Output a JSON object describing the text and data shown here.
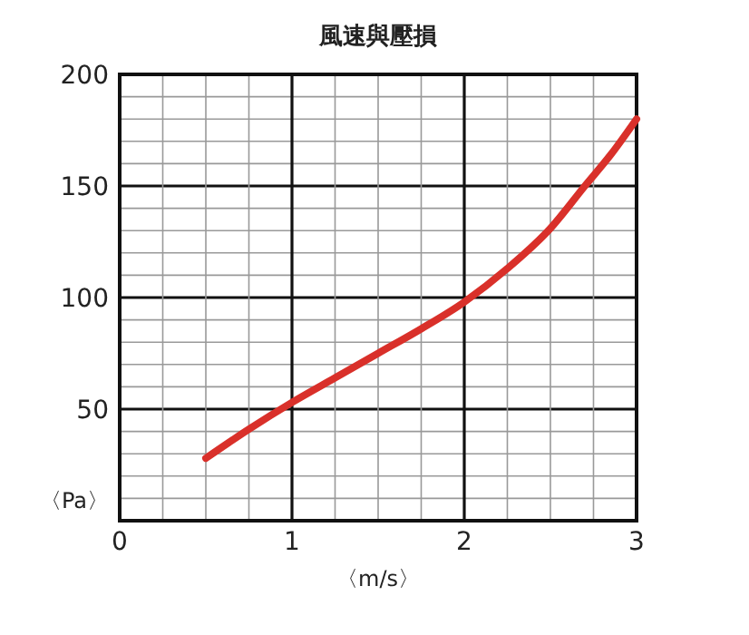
{
  "chart_data": {
    "type": "line",
    "title": "風速與壓損",
    "xlabel": "〈m/s〉",
    "ylabel": "〈Pa〉",
    "x": [
      0.5,
      0.75,
      1,
      1.25,
      1.5,
      1.75,
      2,
      2.25,
      2.5,
      2.7,
      2.85,
      3
    ],
    "series": [
      {
        "color": "#d9302a",
        "values": [
          28,
          41,
          53,
          64,
          75,
          86,
          98,
          113,
          131,
          150,
          164,
          180
        ]
      }
    ],
    "xlim": [
      0,
      3
    ],
    "ylim": [
      0,
      200
    ],
    "xticks": [
      0,
      {
        "value": 0.25,
        "label": null
      },
      {
        "value": 0.5,
        "label": null
      },
      {
        "value": 0.75,
        "label": null
      },
      1,
      {
        "value": 1.25,
        "label": null
      },
      {
        "value": 1.5,
        "label": null
      },
      {
        "value": 1.75,
        "label": null
      },
      2,
      {
        "value": 2.25,
        "label": null
      },
      {
        "value": 2.5,
        "label": null
      },
      {
        "value": 2.75,
        "label": null
      },
      3
    ],
    "yticks": [
      {
        "value": 0,
        "label": null
      },
      {
        "value": 10,
        "label": null
      },
      {
        "value": 20,
        "label": null
      },
      {
        "value": 30,
        "label": null
      },
      {
        "value": 40,
        "label": null
      },
      50,
      {
        "value": 60,
        "label": null
      },
      {
        "value": 70,
        "label": null
      },
      {
        "value": 80,
        "label": null
      },
      {
        "value": 90,
        "label": null
      },
      100,
      {
        "value": 110,
        "label": null
      },
      {
        "value": 120,
        "label": null
      },
      {
        "value": 130,
        "label": null
      },
      {
        "value": 140,
        "label": null
      },
      150,
      {
        "value": 160,
        "label": null
      },
      {
        "value": 170,
        "label": null
      },
      {
        "value": 180,
        "label": null
      },
      {
        "value": 190,
        "label": null
      },
      200
    ],
    "grid": true,
    "marker": "none",
    "line_style": "solid"
  }
}
